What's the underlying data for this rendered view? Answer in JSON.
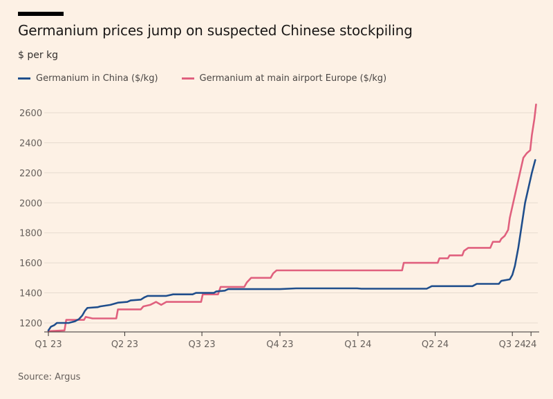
{
  "header": {
    "title": "Germanium prices jump on suspected Chinese stockpiling",
    "subtitle": "$ per kg"
  },
  "footer": {
    "source": "Source: Argus"
  },
  "colors": {
    "background": "#fdf1e5",
    "china": "#1f4e8c",
    "europe": "#e0607e",
    "grid": "#e6dbcf",
    "axis": "#66605c"
  },
  "chart_data": {
    "type": "line",
    "title": "Germanium prices jump on suspected Chinese stockpiling",
    "ylabel": "$ per kg",
    "xlabel": "",
    "ylim": [
      1140,
      2660
    ],
    "xlim": [
      "2023-01-01",
      "2024-07-31"
    ],
    "yticks": [
      1200,
      1400,
      1600,
      1800,
      2000,
      2200,
      2400,
      2600
    ],
    "xticks": [
      {
        "label": "Q1 23",
        "date": "2023-01-01"
      },
      {
        "label": "Q2 23",
        "date": "2023-04-01"
      },
      {
        "label": "Q3 23",
        "date": "2023-07-01"
      },
      {
        "label": "Q4 23",
        "date": "2023-10-01"
      },
      {
        "label": "Q1 24",
        "date": "2024-01-01"
      },
      {
        "label": "Q2 24",
        "date": "2024-04-01"
      },
      {
        "label": "Q3 24",
        "date": "2024-07-01"
      },
      {
        "label": "24",
        "date": "2024-07-23"
      }
    ],
    "grid": true,
    "legend_position": "top-left",
    "series": [
      {
        "name": "Germanium in China ($/kg)",
        "color": "#1f4e8c",
        "points": [
          [
            "2023-01-01",
            1150
          ],
          [
            "2023-01-04",
            1175
          ],
          [
            "2023-01-08",
            1185
          ],
          [
            "2023-01-11",
            1200
          ],
          [
            "2023-01-25",
            1200
          ],
          [
            "2023-02-01",
            1210
          ],
          [
            "2023-02-06",
            1225
          ],
          [
            "2023-02-10",
            1250
          ],
          [
            "2023-02-13",
            1280
          ],
          [
            "2023-02-16",
            1300
          ],
          [
            "2023-02-28",
            1305
          ],
          [
            "2023-03-03",
            1310
          ],
          [
            "2023-03-15",
            1320
          ],
          [
            "2023-03-24",
            1335
          ],
          [
            "2023-04-04",
            1340
          ],
          [
            "2023-04-08",
            1350
          ],
          [
            "2023-04-20",
            1355
          ],
          [
            "2023-04-24",
            1370
          ],
          [
            "2023-04-28",
            1380
          ],
          [
            "2023-05-20",
            1380
          ],
          [
            "2023-05-28",
            1390
          ],
          [
            "2023-06-20",
            1390
          ],
          [
            "2023-06-24",
            1400
          ],
          [
            "2023-07-15",
            1400
          ],
          [
            "2023-07-18",
            1410
          ],
          [
            "2023-07-28",
            1415
          ],
          [
            "2023-08-01",
            1425
          ],
          [
            "2023-10-01",
            1425
          ],
          [
            "2023-10-20",
            1430
          ],
          [
            "2023-12-31",
            1430
          ],
          [
            "2024-01-05",
            1428
          ],
          [
            "2024-03-22",
            1428
          ],
          [
            "2024-03-28",
            1445
          ],
          [
            "2024-05-15",
            1445
          ],
          [
            "2024-05-20",
            1460
          ],
          [
            "2024-06-15",
            1460
          ],
          [
            "2024-06-18",
            1480
          ],
          [
            "2024-06-28",
            1490
          ],
          [
            "2024-07-01",
            1520
          ],
          [
            "2024-07-04",
            1580
          ],
          [
            "2024-07-08",
            1700
          ],
          [
            "2024-07-12",
            1850
          ],
          [
            "2024-07-16",
            2000
          ],
          [
            "2024-07-20",
            2100
          ],
          [
            "2024-07-24",
            2200
          ],
          [
            "2024-07-28",
            2285
          ]
        ]
      },
      {
        "name": "Germanium at main airport Europe ($/kg)",
        "color": "#e0607e",
        "points": [
          [
            "2023-01-01",
            1145
          ],
          [
            "2023-01-20",
            1150
          ],
          [
            "2023-01-22",
            1220
          ],
          [
            "2023-02-12",
            1220
          ],
          [
            "2023-02-14",
            1240
          ],
          [
            "2023-02-22",
            1230
          ],
          [
            "2023-03-22",
            1230
          ],
          [
            "2023-03-24",
            1290
          ],
          [
            "2023-04-20",
            1290
          ],
          [
            "2023-04-23",
            1310
          ],
          [
            "2023-05-01",
            1320
          ],
          [
            "2023-05-08",
            1340
          ],
          [
            "2023-05-14",
            1320
          ],
          [
            "2023-05-20",
            1340
          ],
          [
            "2023-06-30",
            1340
          ],
          [
            "2023-07-02",
            1390
          ],
          [
            "2023-07-20",
            1390
          ],
          [
            "2023-07-23",
            1440
          ],
          [
            "2023-08-20",
            1440
          ],
          [
            "2023-08-23",
            1470
          ],
          [
            "2023-08-28",
            1500
          ],
          [
            "2023-09-20",
            1500
          ],
          [
            "2023-09-23",
            1530
          ],
          [
            "2023-09-27",
            1550
          ],
          [
            "2024-02-22",
            1550
          ],
          [
            "2024-02-24",
            1600
          ],
          [
            "2024-04-04",
            1600
          ],
          [
            "2024-04-06",
            1630
          ],
          [
            "2024-04-16",
            1630
          ],
          [
            "2024-04-18",
            1650
          ],
          [
            "2024-05-03",
            1650
          ],
          [
            "2024-05-05",
            1680
          ],
          [
            "2024-05-10",
            1700
          ],
          [
            "2024-06-05",
            1700
          ],
          [
            "2024-06-08",
            1740
          ],
          [
            "2024-06-16",
            1740
          ],
          [
            "2024-06-18",
            1760
          ],
          [
            "2024-06-22",
            1780
          ],
          [
            "2024-06-26",
            1820
          ],
          [
            "2024-06-28",
            1900
          ],
          [
            "2024-07-02",
            2000
          ],
          [
            "2024-07-06",
            2100
          ],
          [
            "2024-07-10",
            2200
          ],
          [
            "2024-07-14",
            2300
          ],
          [
            "2024-07-18",
            2330
          ],
          [
            "2024-07-22",
            2350
          ],
          [
            "2024-07-24",
            2450
          ],
          [
            "2024-07-27",
            2560
          ],
          [
            "2024-07-29",
            2655
          ]
        ]
      }
    ]
  }
}
